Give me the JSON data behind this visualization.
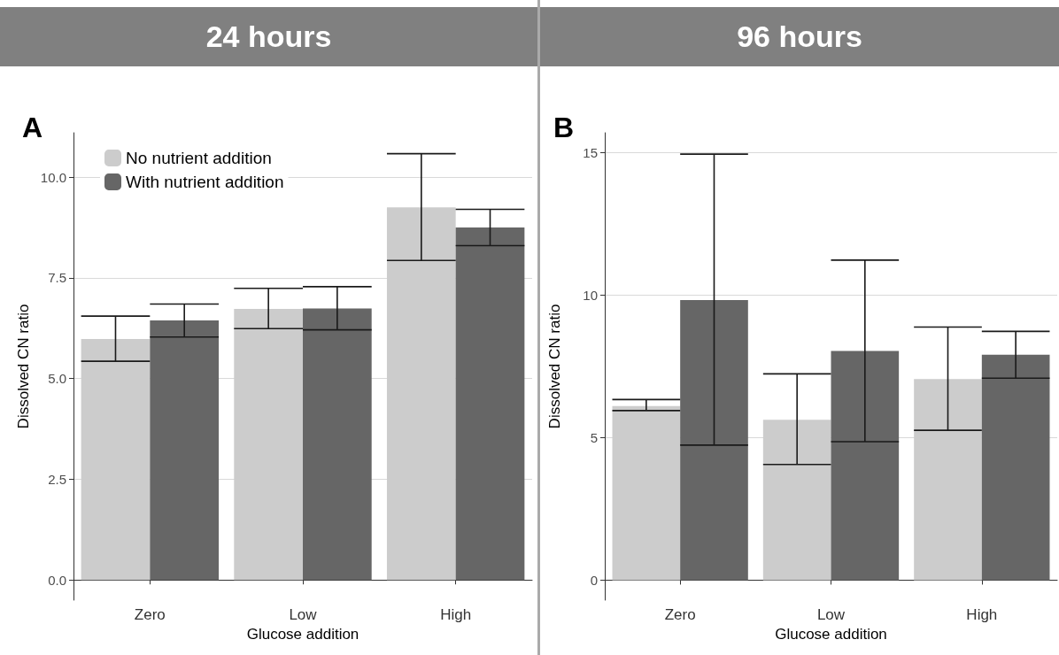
{
  "chart_data": [
    {
      "type": "bar",
      "title": "24 hours",
      "annotations": [
        "A"
      ],
      "xlabel": "Glucose addition",
      "ylabel": "Dissolved CN ratio",
      "categories": [
        "Zero",
        "Low",
        "High"
      ],
      "ylim": [
        -0.5,
        11.1
      ],
      "yticks": [
        {
          "value": 0,
          "label": "0.0"
        },
        {
          "value": 2.5,
          "label": "2.5"
        },
        {
          "value": 5,
          "label": "5.0"
        },
        {
          "value": 7.5,
          "label": "7.5"
        },
        {
          "value": 10,
          "label": "10.0"
        }
      ],
      "grid": "y",
      "legend": "top left",
      "series": [
        {
          "name": "No nutrient addition",
          "color": "#cccccc",
          "values": [
            5.98,
            6.73,
            9.25
          ],
          "errors": [
            [
              5.43,
              6.55
            ],
            [
              6.24,
              7.24
            ],
            [
              7.93,
              10.58
            ]
          ]
        },
        {
          "name": "With nutrient addition",
          "color": "#666666",
          "values": [
            6.44,
            6.74,
            8.75
          ],
          "errors": [
            [
              6.03,
              6.85
            ],
            [
              6.21,
              7.28
            ],
            [
              8.3,
              9.2
            ]
          ]
        }
      ]
    },
    {
      "type": "bar",
      "title": "96 hours",
      "annotations": [
        "B"
      ],
      "xlabel": "Glucose addition",
      "ylabel": "Dissolved CN ratio",
      "categories": [
        "Zero",
        "Low",
        "High"
      ],
      "ylim": [
        -0.7,
        15.7
      ],
      "yticks": [
        0,
        5,
        10,
        15
      ],
      "grid": "y",
      "series": [
        {
          "color": "#cccccc",
          "values": [
            6.11,
            5.63,
            7.06
          ],
          "errors": [
            [
              5.95,
              6.34
            ],
            [
              4.06,
              7.24
            ],
            [
              5.26,
              8.88
            ]
          ]
        },
        {
          "color": "#666666",
          "values": [
            9.83,
            8.04,
            7.91
          ],
          "errors": [
            [
              4.74,
              14.95
            ],
            [
              4.86,
              11.23
            ],
            [
              7.09,
              8.73
            ]
          ]
        }
      ]
    }
  ]
}
